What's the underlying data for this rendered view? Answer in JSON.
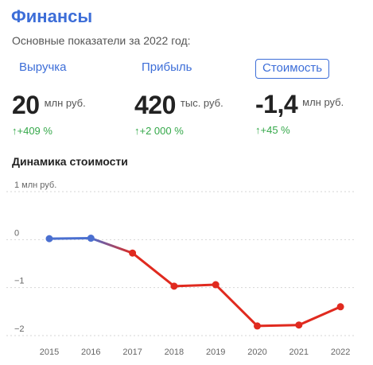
{
  "header": {
    "title": "Финансы",
    "subtitle": "Основные показатели за 2022 год:"
  },
  "metrics": [
    {
      "label": "Выручка",
      "value": "20",
      "unit": "млн руб.",
      "change": "↑+409 %",
      "active": false
    },
    {
      "label": "Прибыль",
      "value": "420",
      "unit": "тыс. руб.",
      "change": "↑+2 000 %",
      "active": false
    },
    {
      "label": "Стоимость",
      "value": "-1,4",
      "unit": "млн руб.",
      "change": "↑+45 %",
      "active": true
    }
  ],
  "chart_title": "Динамика стоимости",
  "chart_data": {
    "type": "line",
    "title": "Динамика стоимости",
    "x": [
      "2015",
      "2016",
      "2017",
      "2018",
      "2019",
      "2020",
      "2021",
      "2022"
    ],
    "values": [
      0.02,
      0.03,
      -0.28,
      -0.97,
      -0.94,
      -1.8,
      -1.78,
      -1.4
    ],
    "ylim": [
      -2,
      1
    ],
    "y_ticks": [
      {
        "value": 1,
        "label": "1 млн руб."
      },
      {
        "value": 0,
        "label": "0"
      },
      {
        "value": -1,
        "label": "−1"
      },
      {
        "value": -2,
        "label": "−2"
      }
    ],
    "grid": true,
    "colors": {
      "positive": "#4a6fd0",
      "negative": "#e02a1f",
      "grid": "#d6d6d6",
      "axis_text": "#666666"
    }
  }
}
